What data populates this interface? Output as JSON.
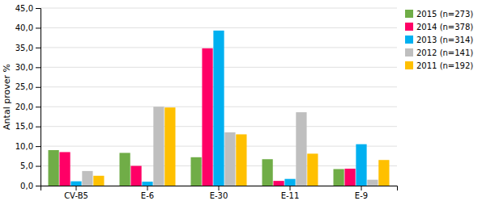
{
  "chart_data": {
    "type": "bar",
    "ylabel": "Antal prover %",
    "categories": [
      "CV-B5",
      "E-6",
      "E-30",
      "E-11",
      "E-9"
    ],
    "series": [
      {
        "name": "2015 (n=273)",
        "color": "#70AD47",
        "values": [
          9.0,
          8.3,
          7.2,
          6.7,
          4.2
        ]
      },
      {
        "name": "2014 (n=378)",
        "color": "#FF0066",
        "values": [
          8.5,
          5.0,
          34.8,
          1.2,
          4.3
        ]
      },
      {
        "name": "2013 (n=314)",
        "color": "#00B0F0",
        "values": [
          1.1,
          1.0,
          39.3,
          1.7,
          10.5
        ]
      },
      {
        "name": "2012 (n=141)",
        "color": "#BFBFBF",
        "values": [
          3.7,
          20.0,
          13.5,
          18.6,
          1.5
        ]
      },
      {
        "name": "2011 (n=192)",
        "color": "#FFC000",
        "values": [
          2.5,
          19.8,
          13.0,
          8.1,
          6.5
        ]
      }
    ],
    "ylim": [
      0,
      45
    ],
    "yticks": [
      {
        "value": 0.0,
        "label": "0,0"
      },
      {
        "value": 5.0,
        "label": "5,0"
      },
      {
        "value": 10.0,
        "label": "10,0"
      },
      {
        "value": 15.0,
        "label": "15,0"
      },
      {
        "value": 20.0,
        "label": "20,0"
      },
      {
        "value": 25.0,
        "label": "25,0"
      },
      {
        "value": 30.0,
        "label": "30,0"
      },
      {
        "value": 35.0,
        "label": "35,0"
      },
      {
        "value": 40.0,
        "label": "40,0"
      },
      {
        "value": 45.0,
        "label": "45,0"
      }
    ],
    "grid": true,
    "legend": "right"
  }
}
